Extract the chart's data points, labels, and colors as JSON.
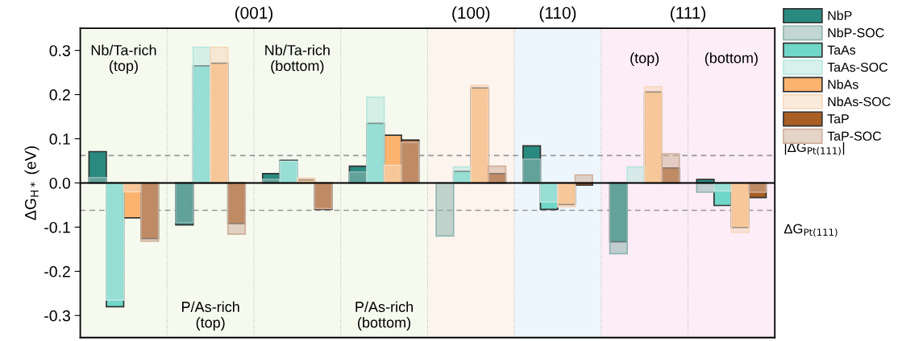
{
  "chart_data": {
    "type": "bar",
    "ylabel": "ΔG$_{H*}$ (eV)",
    "categories": [
      null,
      null,
      null,
      null,
      null,
      null,
      null,
      null
    ],
    "ylim": [
      -0.35,
      0.35
    ],
    "yticks": [
      {
        "value": -0.3,
        "label": "-0.3"
      },
      {
        "value": -0.2,
        "label": "-0.2"
      },
      {
        "value": -0.1,
        "label": "-0.1"
      },
      {
        "value": 0,
        "label": "0.0"
      },
      {
        "value": 0.1,
        "label": "0.1"
      },
      {
        "value": 0.2,
        "label": "0.2"
      },
      {
        "value": 0.3,
        "label": "0.3"
      }
    ],
    "tick_labels": "y",
    "legend": "right",
    "series": [
      {
        "name": "NbP",
        "color": "#2a8a80",
        "values": [
          0.071,
          -0.095,
          0.021,
          0.038,
          null,
          0.084,
          -0.133,
          0.008
        ]
      },
      {
        "name": "NbP-SOC",
        "color": "#8fb5b0",
        "values": [
          0.012,
          -0.09,
          0.008,
          0.025,
          -0.12,
          0.054,
          -0.16,
          -0.021
        ]
      },
      {
        "name": "TaAs",
        "color": "#6fd6c8",
        "values": [
          -0.28,
          0.265,
          0.051,
          0.135,
          0.026,
          -0.06,
          null,
          -0.051
        ]
      },
      {
        "name": "TaAs-SOC",
        "color": "#b8e6df",
        "values": [
          -0.265,
          0.307,
          0.049,
          0.194,
          0.036,
          -0.043,
          0.036,
          -0.018
        ]
      },
      {
        "name": "NbAs",
        "color": "#fbb36e",
        "values": [
          -0.079,
          0.271,
          0.007,
          0.108,
          0.215,
          -0.049,
          0.206,
          -0.101
        ]
      },
      {
        "name": "NbAs-SOC",
        "color": "#f6d8bd",
        "values": [
          -0.02,
          0.307,
          0.011,
          0.04,
          0.221,
          -0.054,
          0.218,
          -0.112
        ]
      },
      {
        "name": "TaP",
        "color": "#a95e24",
        "values": [
          -0.126,
          -0.092,
          -0.06,
          0.097,
          0.021,
          -0.005,
          0.034,
          -0.033
        ]
      },
      {
        "name": "TaP-SOC",
        "color": "#cfb09b",
        "values": [
          -0.132,
          -0.116,
          -0.058,
          0.092,
          0.038,
          0.018,
          0.066,
          -0.021
        ]
      }
    ],
    "ref_lines": [
      {
        "axis": "y",
        "value": 0.062,
        "label": "|ΔG$_{Pt(111)}$|",
        "color": "#999999",
        "line_style": "dashed"
      },
      {
        "axis": "y",
        "value": -0.062,
        "label": "ΔG$_{Pt(111)}$",
        "color": "#999999",
        "line_style": "dashed"
      }
    ],
    "annotations": [
      "(001)",
      "(100)",
      "(110)",
      "(111)",
      "Nb/Ta-rich\n(top)",
      "P/As-rich\n(top)",
      "Nb/Ta-rich\n(bottom)",
      "P/As-rich\n(bottom)",
      "(top)",
      "(bottom)"
    ]
  }
}
